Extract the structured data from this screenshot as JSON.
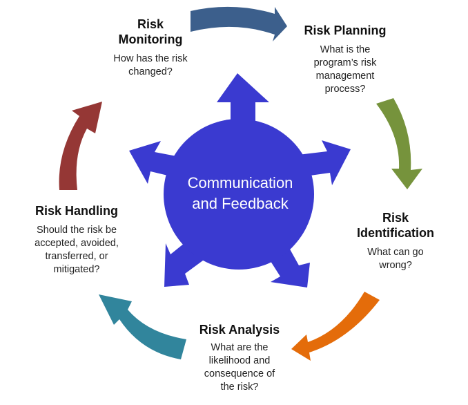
{
  "center": {
    "line1": "Communication",
    "line2": "and Feedback",
    "color": "#3a3ad0"
  },
  "stages": {
    "monitoring": {
      "title_line1": "Risk",
      "title_line2": "Monitoring",
      "question_line1": "How has the risk",
      "question_line2": "changed?"
    },
    "planning": {
      "title": "Risk Planning",
      "question_line1": "What is the",
      "question_line2": "program’s risk",
      "question_line3": "management",
      "question_line4": "process?"
    },
    "identification": {
      "title_line1": "Risk",
      "title_line2": "Identification",
      "question_line1": "What can go",
      "question_line2": "wrong?"
    },
    "analysis": {
      "title": "Risk Analysis",
      "question_line1": "What are the",
      "question_line2": "likelihood and",
      "question_line3": "consequence of",
      "question_line4": "the risk?"
    },
    "handling": {
      "title": "Risk Handling",
      "question_line1": "Should the risk be",
      "question_line2": "accepted, avoided,",
      "question_line3": "transferred, or",
      "question_line4": "mitigated?"
    }
  },
  "arrow_colors": {
    "monitoring_to_planning": "#3c5f8c",
    "planning_to_identification": "#76933c",
    "identification_to_analysis": "#e46c0a",
    "analysis_to_handling": "#31859c",
    "handling_to_monitoring": "#953735"
  }
}
